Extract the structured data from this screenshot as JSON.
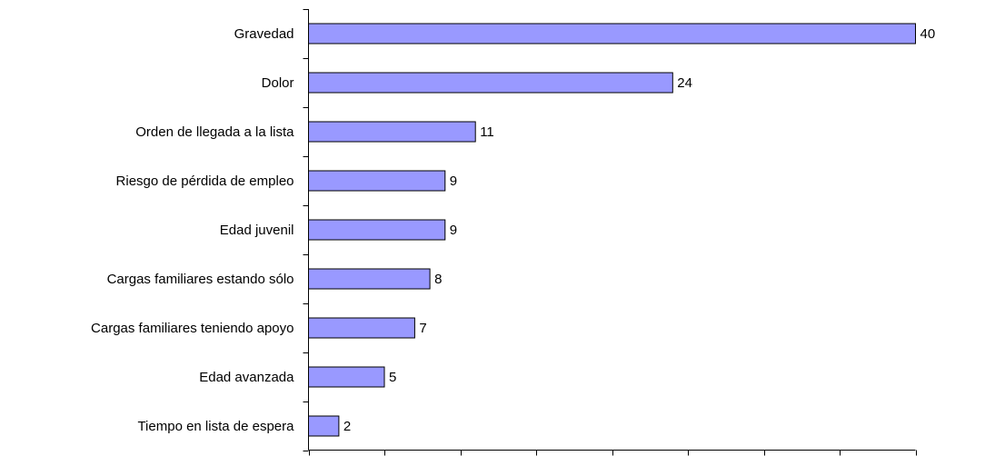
{
  "chart_data": {
    "type": "barh",
    "categories": [
      "Gravedad",
      "Dolor",
      "Orden de llegada a la lista",
      "Riesgo de pérdida de empleo",
      "Edad juvenil",
      "Cargas familiares estando sólo",
      "Cargas familiares teniendo apoyo",
      "Edad avanzada",
      "Tiempo en lista de espera"
    ],
    "values": [
      40,
      24,
      11,
      9,
      9,
      8,
      7,
      5,
      2
    ],
    "color": "#9999ff",
    "xlim": [
      0,
      40
    ],
    "xticks": [
      0,
      5,
      10,
      15,
      20,
      25,
      30,
      35,
      40
    ]
  }
}
